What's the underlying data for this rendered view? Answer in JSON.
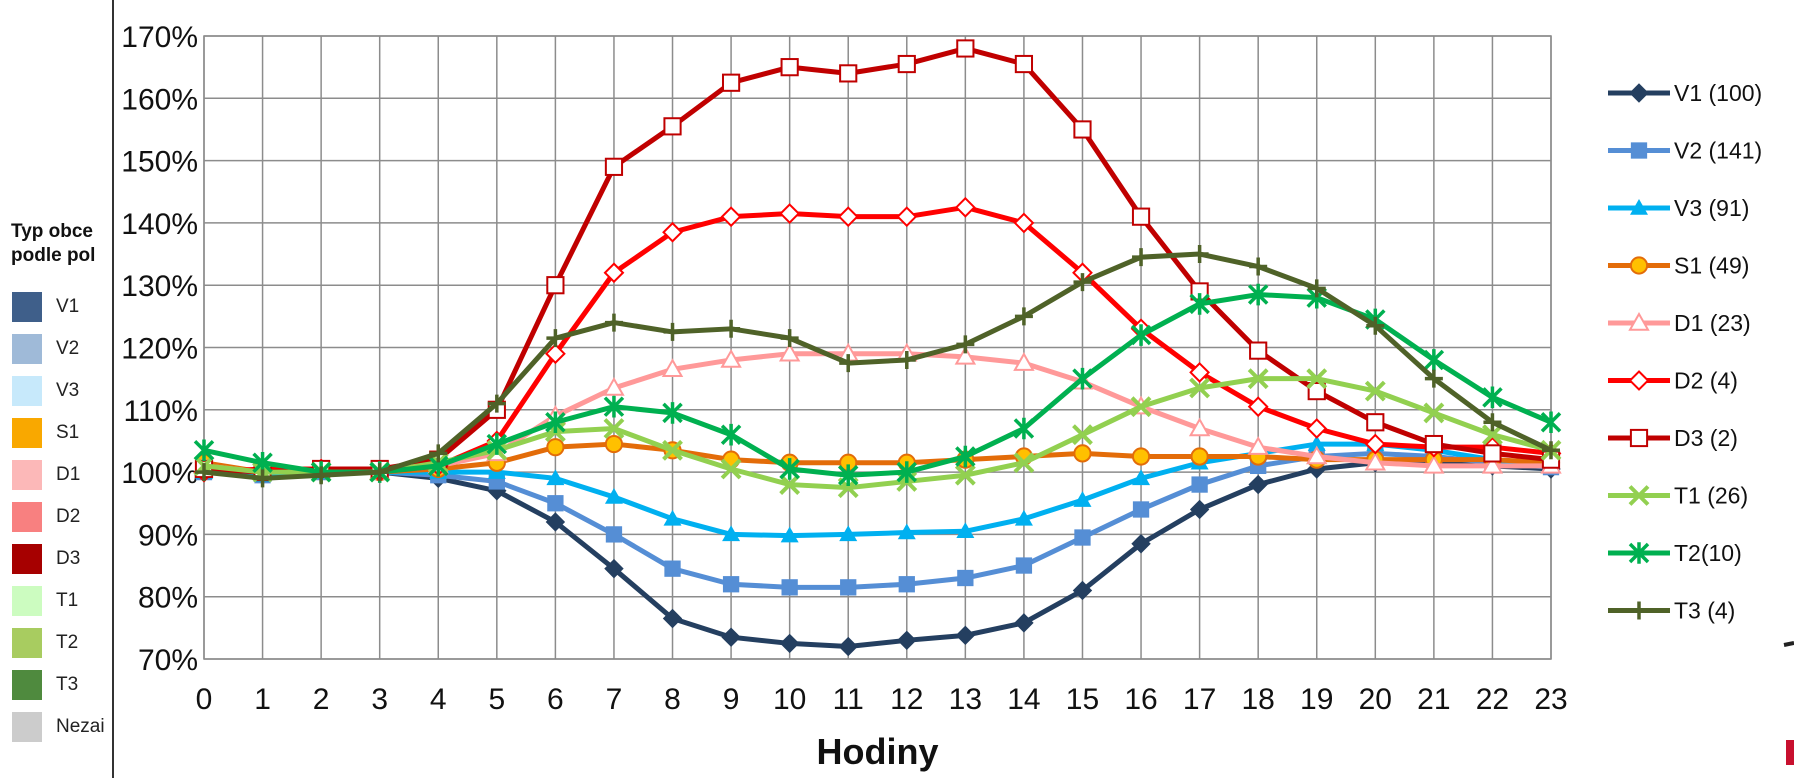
{
  "side_legend": {
    "title_line1": "Typ obce",
    "title_line2": "podle pol",
    "items": [
      {
        "label": "V1",
        "color": "#3f5f8a"
      },
      {
        "label": "V2",
        "color": "#9fbad8"
      },
      {
        "label": "V3",
        "color": "#c7e9fb"
      },
      {
        "label": "S1",
        "color": "#f9a800"
      },
      {
        "label": "D1",
        "color": "#fcb8b8"
      },
      {
        "label": "D2",
        "color": "#f88080"
      },
      {
        "label": "D3",
        "color": "#a60000"
      },
      {
        "label": "T1",
        "color": "#ccfcc0"
      },
      {
        "label": "T2",
        "color": "#a8cc60"
      },
      {
        "label": "T3",
        "color": "#4f8a3e"
      },
      {
        "label": "Nezai",
        "color": "#cccccc"
      }
    ]
  },
  "chart_data": {
    "type": "line",
    "xlabel": "Hodiny",
    "ylabel": "",
    "ylim": [
      70,
      170
    ],
    "y_ticks": [
      "70%",
      "80%",
      "90%",
      "100%",
      "110%",
      "120%",
      "130%",
      "140%",
      "150%",
      "160%",
      "170%"
    ],
    "x": [
      0,
      1,
      2,
      3,
      4,
      5,
      6,
      7,
      8,
      9,
      10,
      11,
      12,
      13,
      14,
      15,
      16,
      17,
      18,
      19,
      20,
      21,
      22,
      23
    ],
    "grid": true,
    "legend_position": "right",
    "series": [
      {
        "name": "V1 (100)",
        "color": "#243f60",
        "marker": "diamond",
        "values": [
          100,
          99.5,
          100,
          100,
          99,
          97,
          92,
          84.5,
          76.5,
          73.5,
          72.5,
          72,
          73,
          73.8,
          75.8,
          81,
          88.5,
          94,
          98,
          100.5,
          101.5,
          101.5,
          101,
          100.5
        ]
      },
      {
        "name": "V2 (141)",
        "color": "#558ed5",
        "marker": "square",
        "values": [
          100,
          99.5,
          100,
          100,
          99.5,
          98.5,
          95,
          90,
          84.5,
          82,
          81.5,
          81.5,
          82,
          83,
          85,
          89.5,
          94,
          98,
          101,
          102.5,
          103,
          102.5,
          101.5,
          100.8
        ]
      },
      {
        "name": "V3 (91)",
        "color": "#00b0f0",
        "marker": "triangle",
        "values": [
          100,
          99.5,
          100,
          100,
          100,
          100,
          99,
          96,
          92.5,
          90,
          89.8,
          90,
          90.3,
          90.5,
          92.5,
          95.5,
          99,
          101.5,
          103,
          104.5,
          104.5,
          103.5,
          102,
          101
        ]
      },
      {
        "name": "S1 (49)",
        "color": "#e36c09",
        "marker": "circle",
        "values": [
          101.5,
          100,
          100.5,
          100,
          100.5,
          101.5,
          104,
          104.5,
          103.5,
          102,
          101.5,
          101.5,
          101.5,
          102,
          102.5,
          103,
          102.5,
          102.5,
          102.5,
          102,
          102,
          102,
          102,
          101.5
        ]
      },
      {
        "name": "D1 (23)",
        "color": "#ff9999",
        "marker": "triangle-open",
        "values": [
          101,
          100,
          100.5,
          100,
          101,
          103,
          109,
          113.5,
          116.5,
          118,
          119,
          119,
          119,
          118.5,
          117.5,
          114.5,
          110.5,
          107,
          104,
          102.5,
          101.5,
          101,
          101,
          101
        ]
      },
      {
        "name": "D2 (4)",
        "color": "#ff0000",
        "marker": "diamond-open",
        "values": [
          100,
          100.5,
          100.5,
          100,
          101,
          105,
          119,
          132,
          138.5,
          141,
          141.5,
          141,
          141,
          142.5,
          140,
          132,
          123,
          116,
          110.5,
          107,
          104.5,
          104,
          104,
          103
        ]
      },
      {
        "name": "D3 (2)",
        "color": "#c00000",
        "marker": "square-open",
        "values": [
          100.5,
          100,
          100.5,
          100.5,
          102,
          110,
          130,
          149,
          155.5,
          162.5,
          165,
          164,
          165.5,
          168,
          165.5,
          155,
          141,
          129,
          119.5,
          113,
          108,
          104.5,
          103,
          102
        ]
      },
      {
        "name": "T1 (26)",
        "color": "#92d050",
        "marker": "x",
        "values": [
          101,
          100,
          100,
          100,
          101.5,
          103.5,
          106.5,
          107,
          103.5,
          100.5,
          98,
          97.5,
          98.5,
          99.5,
          101.5,
          106,
          110.5,
          113.5,
          115,
          115,
          113,
          109.5,
          106,
          103.5
        ]
      },
      {
        "name": "T2(10)",
        "color": "#00b050",
        "marker": "star",
        "values": [
          103.5,
          101.5,
          100,
          100,
          101,
          104.5,
          108,
          110.5,
          109.5,
          106,
          100.5,
          99.5,
          100,
          102.5,
          107,
          115,
          122,
          127,
          128.5,
          128,
          124.5,
          118,
          112,
          108
        ]
      },
      {
        "name": "T3 (4)",
        "color": "#4f6228",
        "marker": "plus",
        "values": [
          100,
          99,
          99.5,
          100,
          103,
          111,
          121.5,
          124,
          122.5,
          123,
          121.5,
          117.5,
          118,
          120.5,
          125,
          130.5,
          134.5,
          135,
          133,
          129.5,
          123.5,
          115,
          108,
          103.5
        ]
      }
    ]
  }
}
